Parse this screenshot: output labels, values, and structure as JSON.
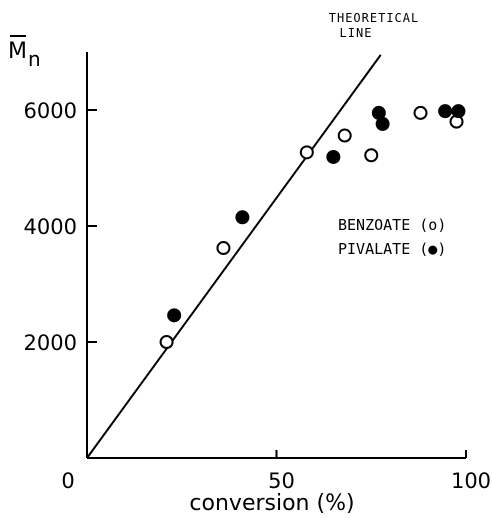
{
  "chart_data": {
    "type": "scatter",
    "xlabel": "conversion (%)",
    "ylabel_main": "M",
    "ylabel_sub": "n",
    "xlim": [
      0,
      100
    ],
    "ylim": [
      0,
      7000
    ],
    "x_ticks": [
      {
        "value": 0,
        "label": "0"
      },
      {
        "value": 50,
        "label": "50"
      },
      {
        "value": 100,
        "label": "100"
      }
    ],
    "y_ticks": [
      {
        "value": 2000,
        "label": "2000"
      },
      {
        "value": 4000,
        "label": "4000"
      },
      {
        "value": 6000,
        "label": "6000"
      }
    ],
    "theoretical_line": {
      "label_line1": "THEORETICAL",
      "label_line2": "LINE",
      "points": [
        [
          0,
          0
        ],
        [
          77.5,
          6950
        ]
      ]
    },
    "series": [
      {
        "name": "BENZOATE",
        "marker": "open",
        "legend_label": "BENZOATE (o)",
        "points": [
          [
            21,
            2000
          ],
          [
            36,
            3620
          ],
          [
            58,
            5270
          ],
          [
            68,
            5560
          ],
          [
            75,
            5220
          ],
          [
            88,
            5950
          ],
          [
            97.5,
            5800
          ]
        ]
      },
      {
        "name": "PIVALATE",
        "marker": "filled",
        "legend_label": "PIVALATE (●)",
        "points": [
          [
            23,
            2460
          ],
          [
            41,
            4150
          ],
          [
            65,
            5190
          ],
          [
            77,
            5950
          ],
          [
            78,
            5760
          ],
          [
            94.5,
            5980
          ],
          [
            98,
            5980
          ]
        ]
      }
    ]
  }
}
